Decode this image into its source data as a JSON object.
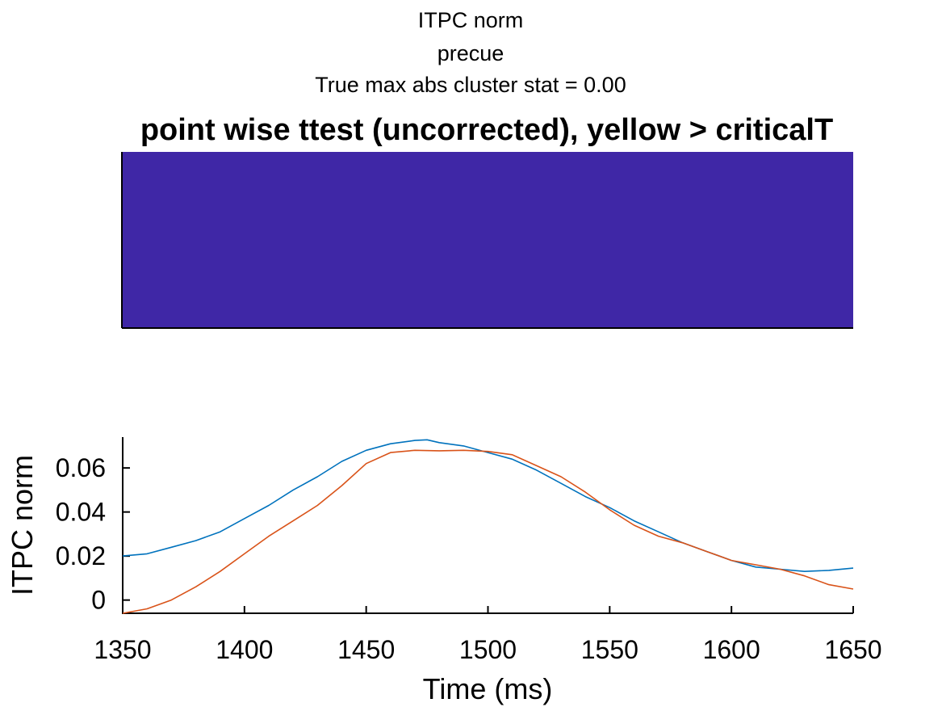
{
  "titles": {
    "line1": "ITPC norm",
    "line2": "precue",
    "line3": "True max abs cluster stat = 0.00",
    "heatmap_title": "point wise ttest (uncorrected), yellow > criticalT"
  },
  "colors": {
    "heatmap_fill": "#3f27a6",
    "series_blue": "#0072bd",
    "series_orange": "#d95319"
  },
  "chart_data": [
    {
      "type": "heatmap",
      "title": "point wise ttest (uncorrected), yellow > criticalT",
      "xlim": [
        1350,
        1650
      ],
      "values_all": "below criticalT (uniform)",
      "color": "#3f27a6"
    },
    {
      "type": "line",
      "xlabel": "Time (ms)",
      "ylabel": "ITPC norm",
      "xlim": [
        1350,
        1650
      ],
      "ylim": [
        -0.006,
        0.074
      ],
      "xticks": [
        1350,
        1400,
        1450,
        1500,
        1550,
        1600,
        1650
      ],
      "xtick_labels": [
        "1350",
        "1400",
        "1450",
        "1500",
        "1550",
        "1600",
        "1650"
      ],
      "yticks": [
        0,
        0.02,
        0.04,
        0.06
      ],
      "ytick_labels": [
        "0",
        "0.02",
        "0.04",
        "0.06"
      ],
      "grid": false,
      "series": [
        {
          "color": "#0072bd",
          "x": [
            1350,
            1360,
            1370,
            1380,
            1390,
            1400,
            1410,
            1420,
            1430,
            1440,
            1450,
            1460,
            1470,
            1475,
            1480,
            1490,
            1500,
            1510,
            1520,
            1530,
            1540,
            1550,
            1560,
            1570,
            1580,
            1590,
            1600,
            1610,
            1620,
            1630,
            1640,
            1650
          ],
          "y": [
            0.02,
            0.021,
            0.024,
            0.027,
            0.031,
            0.037,
            0.043,
            0.05,
            0.056,
            0.063,
            0.068,
            0.071,
            0.0725,
            0.0728,
            0.0715,
            0.07,
            0.067,
            0.064,
            0.059,
            0.053,
            0.047,
            0.042,
            0.036,
            0.031,
            0.026,
            0.022,
            0.018,
            0.015,
            0.014,
            0.013,
            0.0135,
            0.0145
          ]
        },
        {
          "color": "#d95319",
          "x": [
            1350,
            1360,
            1370,
            1380,
            1390,
            1400,
            1410,
            1420,
            1430,
            1440,
            1450,
            1460,
            1470,
            1480,
            1490,
            1500,
            1510,
            1520,
            1530,
            1540,
            1550,
            1560,
            1570,
            1580,
            1590,
            1600,
            1610,
            1620,
            1630,
            1640,
            1650
          ],
          "y": [
            -0.006,
            -0.004,
            0.0,
            0.006,
            0.013,
            0.021,
            0.029,
            0.036,
            0.043,
            0.052,
            0.062,
            0.067,
            0.068,
            0.0678,
            0.068,
            0.0675,
            0.066,
            0.061,
            0.056,
            0.049,
            0.041,
            0.034,
            0.029,
            0.026,
            0.022,
            0.018,
            0.016,
            0.014,
            0.011,
            0.007,
            0.005
          ]
        }
      ]
    }
  ]
}
